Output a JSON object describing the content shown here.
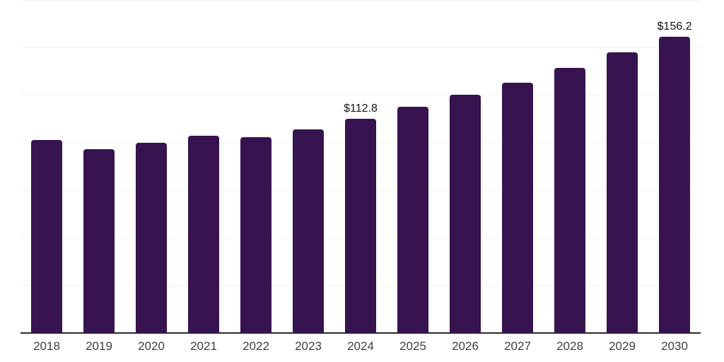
{
  "chart_data": {
    "type": "bar",
    "title": "",
    "xlabel": "",
    "ylabel": "",
    "categories": [
      "2018",
      "2019",
      "2020",
      "2021",
      "2022",
      "2023",
      "2024",
      "2025",
      "2026",
      "2027",
      "2028",
      "2029",
      "2030"
    ],
    "values": [
      101.5,
      96.8,
      100.0,
      104.0,
      103.3,
      107.2,
      112.8,
      119.0,
      125.5,
      131.8,
      139.8,
      148.0,
      156.2
    ],
    "data_labels": {
      "2024": "$112.8",
      "2030": "$156.2"
    },
    "ylim": [
      0,
      175
    ],
    "grid_step": 25,
    "grid": true,
    "legend": false,
    "colors": {
      "bar": "#371450",
      "gridline": "#f2f2f2",
      "axis": "#2a2a2a",
      "value_label": "#141414",
      "tick_label": "#404040"
    }
  }
}
